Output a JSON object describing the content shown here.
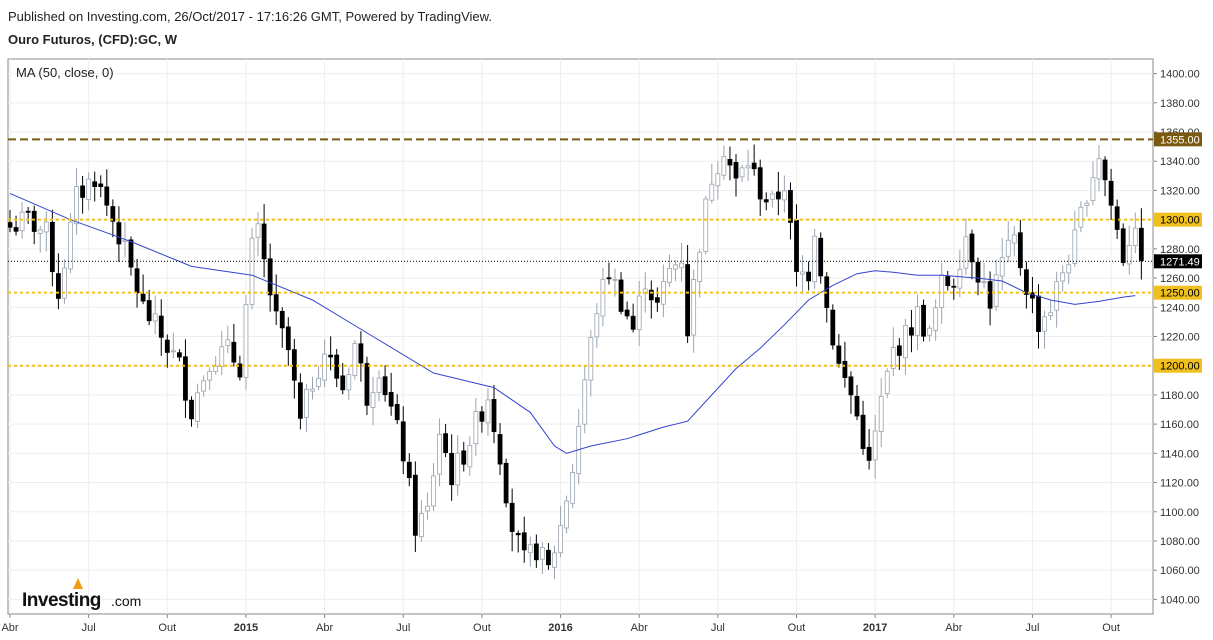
{
  "header": {
    "published": "Published on Investing.com, 26/Oct/2017 - 17:16:26 GMT, Powered by TradingView.",
    "symbol": "Ouro Futuros, (CFD):GC, W"
  },
  "indicator_label": "MA (50, close, 0)",
  "logo": {
    "brand": "Investing",
    "suffix": ".com"
  },
  "colors": {
    "up_candle": "#ffffff",
    "down_candle": "#000000",
    "ma_line": "#3344cc",
    "support_line": "#f0c020",
    "resistance_line": "#7a5a10",
    "current_line": "#000000"
  },
  "chart_data": {
    "type": "candlestick",
    "title": "",
    "ylim": [
      1030,
      1410
    ],
    "y_ticks": [
      1040,
      1060,
      1080,
      1100,
      1120,
      1140,
      1160,
      1180,
      1200,
      1220,
      1240,
      1260,
      1280,
      1300,
      1320,
      1340,
      1360,
      1380,
      1400
    ],
    "x_ticks": [
      {
        "label": "Abr",
        "week": 0,
        "bold": false
      },
      {
        "label": "Jul",
        "week": 13,
        "bold": false
      },
      {
        "label": "Out",
        "week": 26,
        "bold": false
      },
      {
        "label": "2015",
        "week": 39,
        "bold": true
      },
      {
        "label": "Abr",
        "week": 52,
        "bold": false
      },
      {
        "label": "Jul",
        "week": 65,
        "bold": false
      },
      {
        "label": "Out",
        "week": 78,
        "bold": false
      },
      {
        "label": "2016",
        "week": 91,
        "bold": true
      },
      {
        "label": "Abr",
        "week": 104,
        "bold": false
      },
      {
        "label": "Jul",
        "week": 117,
        "bold": false
      },
      {
        "label": "Out",
        "week": 130,
        "bold": false
      },
      {
        "label": "2017",
        "week": 143,
        "bold": true
      },
      {
        "label": "Abr",
        "week": 156,
        "bold": false
      },
      {
        "label": "Jul",
        "week": 169,
        "bold": false
      },
      {
        "label": "Out",
        "week": 182,
        "bold": false
      }
    ],
    "horizontal_lines": [
      {
        "value": 1355.0,
        "label": "1355.00",
        "style": "resistance"
      },
      {
        "value": 1300.0,
        "label": "1300.00",
        "style": "support"
      },
      {
        "value": 1250.0,
        "label": "1250.00",
        "style": "support"
      },
      {
        "value": 1200.0,
        "label": "1200.00",
        "style": "support"
      },
      {
        "value": 1271.49,
        "label": "1271.49",
        "style": "current"
      }
    ],
    "anchors": [
      [
        0,
        1295
      ],
      [
        3,
        1300
      ],
      [
        6,
        1290
      ],
      [
        8,
        1250
      ],
      [
        11,
        1315
      ],
      [
        14,
        1330
      ],
      [
        18,
        1290
      ],
      [
        22,
        1240
      ],
      [
        25,
        1220
      ],
      [
        28,
        1200
      ],
      [
        30,
        1170
      ],
      [
        33,
        1205
      ],
      [
        36,
        1210
      ],
      [
        38,
        1200
      ],
      [
        40,
        1280
      ],
      [
        41,
        1290
      ],
      [
        44,
        1230
      ],
      [
        46,
        1210
      ],
      [
        48,
        1160
      ],
      [
        50,
        1190
      ],
      [
        52,
        1210
      ],
      [
        55,
        1185
      ],
      [
        57,
        1215
      ],
      [
        59,
        1180
      ],
      [
        61,
        1200
      ],
      [
        63,
        1170
      ],
      [
        65,
        1140
      ],
      [
        67,
        1090
      ],
      [
        69,
        1100
      ],
      [
        71,
        1155
      ],
      [
        73,
        1125
      ],
      [
        75,
        1140
      ],
      [
        77,
        1160
      ],
      [
        79,
        1180
      ],
      [
        81,
        1140
      ],
      [
        83,
        1090
      ],
      [
        85,
        1065
      ],
      [
        87,
        1075
      ],
      [
        89,
        1060
      ],
      [
        91,
        1090
      ],
      [
        93,
        1130
      ],
      [
        95,
        1190
      ],
      [
        97,
        1240
      ],
      [
        99,
        1265
      ],
      [
        101,
        1245
      ],
      [
        103,
        1225
      ],
      [
        105,
        1260
      ],
      [
        107,
        1240
      ],
      [
        109,
        1265
      ],
      [
        111,
        1275
      ],
      [
        112,
        1225
      ],
      [
        114,
        1285
      ],
      [
        116,
        1330
      ],
      [
        118,
        1350
      ],
      [
        120,
        1325
      ],
      [
        122,
        1340
      ],
      [
        124,
        1320
      ],
      [
        126,
        1310
      ],
      [
        128,
        1325
      ],
      [
        130,
        1260
      ],
      [
        132,
        1265
      ],
      [
        133,
        1295
      ],
      [
        135,
        1240
      ],
      [
        137,
        1200
      ],
      [
        139,
        1180
      ],
      [
        141,
        1150
      ],
      [
        142,
        1130
      ],
      [
        144,
        1175
      ],
      [
        146,
        1210
      ],
      [
        148,
        1220
      ],
      [
        150,
        1235
      ],
      [
        152,
        1220
      ],
      [
        154,
        1255
      ],
      [
        156,
        1260
      ],
      [
        158,
        1290
      ],
      [
        160,
        1265
      ],
      [
        162,
        1245
      ],
      [
        164,
        1270
      ],
      [
        166,
        1285
      ],
      [
        168,
        1255
      ],
      [
        170,
        1230
      ],
      [
        172,
        1240
      ],
      [
        174,
        1265
      ],
      [
        176,
        1285
      ],
      [
        178,
        1320
      ],
      [
        180,
        1345
      ],
      [
        182,
        1310
      ],
      [
        184,
        1275
      ],
      [
        186,
        1300
      ],
      [
        187,
        1272
      ]
    ],
    "ma": [
      [
        0,
        1318
      ],
      [
        10,
        1300
      ],
      [
        20,
        1285
      ],
      [
        30,
        1268
      ],
      [
        40,
        1262
      ],
      [
        50,
        1245
      ],
      [
        60,
        1220
      ],
      [
        70,
        1195
      ],
      [
        80,
        1185
      ],
      [
        86,
        1168
      ],
      [
        90,
        1145
      ],
      [
        92,
        1140
      ],
      [
        96,
        1145
      ],
      [
        102,
        1150
      ],
      [
        108,
        1158
      ],
      [
        112,
        1162
      ],
      [
        116,
        1180
      ],
      [
        120,
        1198
      ],
      [
        124,
        1212
      ],
      [
        128,
        1228
      ],
      [
        132,
        1245
      ],
      [
        136,
        1255
      ],
      [
        140,
        1263
      ],
      [
        143,
        1265
      ],
      [
        146,
        1264
      ],
      [
        150,
        1262
      ],
      [
        154,
        1262
      ],
      [
        160,
        1260
      ],
      [
        164,
        1258
      ],
      [
        168,
        1250
      ],
      [
        172,
        1245
      ],
      [
        176,
        1242
      ],
      [
        180,
        1244
      ],
      [
        184,
        1247
      ],
      [
        186,
        1248
      ]
    ]
  }
}
